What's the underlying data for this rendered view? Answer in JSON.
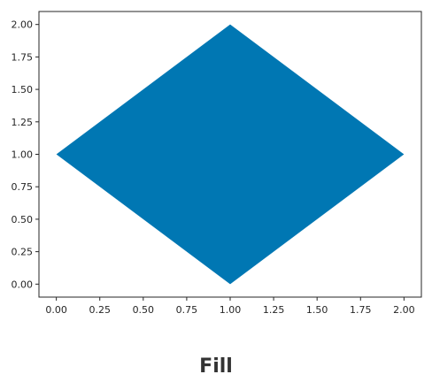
{
  "chart_data": {
    "type": "area",
    "series": [
      {
        "x": [
          0,
          1,
          2,
          1,
          0
        ],
        "y": [
          1,
          2,
          1,
          0,
          1
        ]
      }
    ],
    "fill_color": "#0077b3",
    "xlim": [
      -0.1,
      2.1
    ],
    "ylim": [
      -0.1,
      2.1
    ],
    "xticks": [
      0.0,
      0.25,
      0.5,
      0.75,
      1.0,
      1.25,
      1.5,
      1.75,
      2.0
    ],
    "yticks": [
      0.0,
      0.25,
      0.5,
      0.75,
      1.0,
      1.25,
      1.5,
      1.75,
      2.0
    ],
    "xtick_labels": [
      "0.00",
      "0.25",
      "0.50",
      "0.75",
      "1.00",
      "1.25",
      "1.50",
      "1.75",
      "2.00"
    ],
    "ytick_labels": [
      "0.00",
      "0.25",
      "0.50",
      "0.75",
      "1.00",
      "1.25",
      "1.50",
      "1.75",
      "2.00"
    ],
    "grid": false,
    "legend": "none"
  },
  "caption": "Fill"
}
